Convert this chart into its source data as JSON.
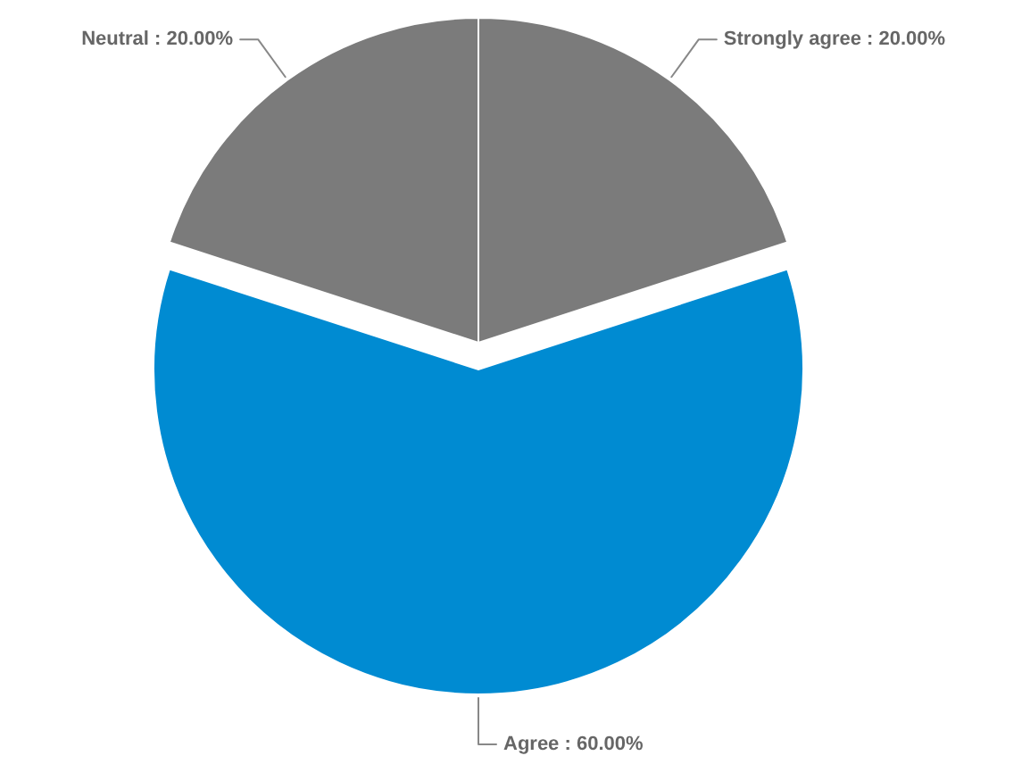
{
  "chart_data": {
    "type": "pie",
    "categories": [
      "Strongly agree",
      "Agree",
      "Neutral"
    ],
    "values": [
      20,
      60,
      20
    ],
    "colors": [
      "#7b7b7b",
      "#008bd2",
      "#7b7b7b"
    ],
    "value_labels": [
      "20.00%",
      "60.00%",
      "20.00%"
    ]
  }
}
